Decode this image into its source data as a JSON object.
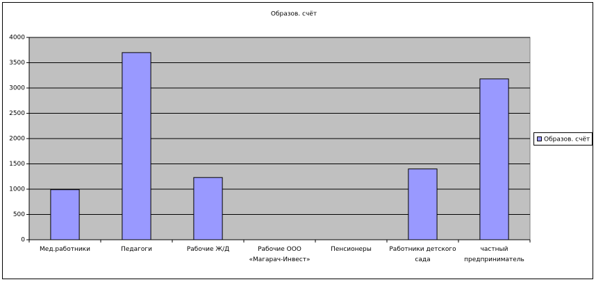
{
  "chart_data": {
    "type": "bar",
    "title": "Образов. счёт",
    "categories": [
      "Мед.работники",
      "Педагоги",
      "Рабочие Ж/Д",
      "Рабочие ООО «Магарач-Инвест»",
      "Пенсионеры",
      "Работники детского сада",
      "частный предприниматель"
    ],
    "series": [
      {
        "name": "Образов. счёт",
        "color": "#9999ff",
        "values": [
          990,
          3700,
          1230,
          0,
          0,
          1400,
          3180
        ]
      }
    ],
    "ylim": [
      0,
      4000
    ],
    "yticks": [
      0,
      500,
      1000,
      1500,
      2000,
      2500,
      3000,
      3500,
      4000
    ],
    "grid": true,
    "legend": "right"
  }
}
